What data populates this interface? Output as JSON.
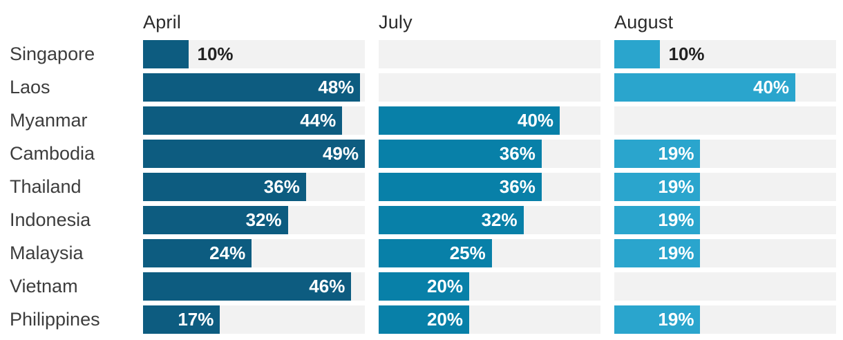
{
  "chart_data": {
    "type": "bar",
    "orientation": "horizontal",
    "layout": "grouped small multiples: one panel per month, shared rows, no axes, gridless, value labels on bars",
    "title": "",
    "categories": [
      "Singapore",
      "Laos",
      "Myanmar",
      "Cambodia",
      "Thailand",
      "Indonesia",
      "Malaysia",
      "Vietnam",
      "Philippines"
    ],
    "value_suffix": "%",
    "scale_max": 49,
    "track_color": "#f2f2f2",
    "label_outside_threshold": 10,
    "series": [
      {
        "name": "April",
        "color": "#0d5c80",
        "values": [
          10,
          48,
          44,
          49,
          36,
          32,
          24,
          46,
          17
        ],
        "labels": [
          "10%",
          "48%",
          "44%",
          "49%",
          "36%",
          "32%",
          "24%",
          "46%",
          "17%"
        ]
      },
      {
        "name": "July",
        "color": "#0880a8",
        "values": [
          null,
          null,
          40,
          36,
          36,
          32,
          25,
          20,
          20
        ],
        "labels": [
          "",
          "",
          "40%",
          "36%",
          "36%",
          "32%",
          "25%",
          "20%",
          "20%"
        ]
      },
      {
        "name": "August",
        "color": "#2aa5cd",
        "values": [
          10,
          40,
          null,
          19,
          19,
          19,
          19,
          null,
          19
        ],
        "labels": [
          "10%",
          "40%",
          "",
          "19%",
          "19%",
          "19%",
          "19%",
          "",
          "19%"
        ]
      }
    ]
  }
}
